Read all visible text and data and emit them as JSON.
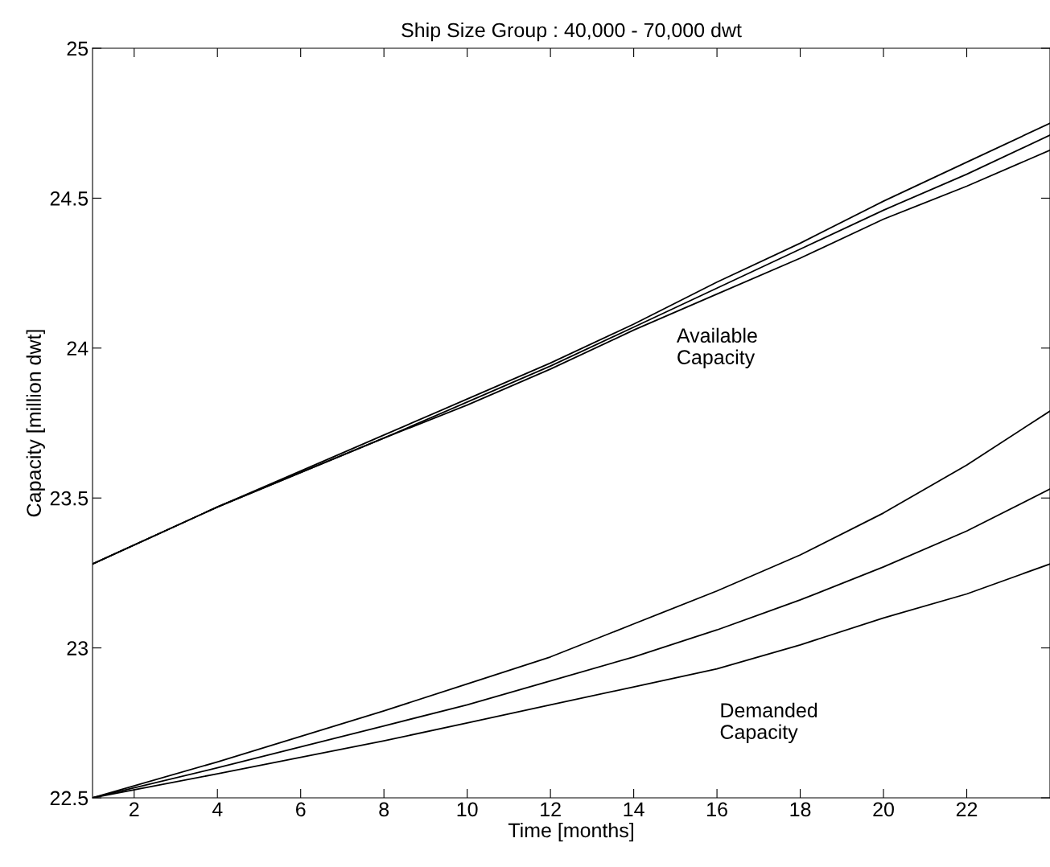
{
  "chart_data": {
    "type": "line",
    "title": "Ship Size Group : 40,000 - 70,000 dwt",
    "xlabel": "Time [months]",
    "ylabel": "Capacity [million dwt]",
    "x": [
      1,
      4,
      8,
      10,
      12,
      14,
      16,
      18,
      20,
      22,
      24
    ],
    "series": [
      {
        "color": "#000000",
        "values": [
          23.28,
          23.47,
          23.71,
          23.83,
          23.95,
          24.08,
          24.22,
          24.35,
          24.49,
          24.62,
          24.75
        ]
      },
      {
        "color": "#000000",
        "values": [
          23.28,
          23.47,
          23.7,
          23.82,
          23.94,
          24.07,
          24.2,
          24.33,
          24.46,
          24.58,
          24.71
        ]
      },
      {
        "color": "#000000",
        "values": [
          23.28,
          23.47,
          23.7,
          23.81,
          23.93,
          24.06,
          24.18,
          24.3,
          24.43,
          24.54,
          24.66
        ]
      },
      {
        "color": "#000000",
        "values": [
          22.5,
          22.62,
          22.79,
          22.88,
          22.97,
          23.08,
          23.19,
          23.31,
          23.45,
          23.61,
          23.79
        ]
      },
      {
        "color": "#000000",
        "values": [
          22.5,
          22.6,
          22.74,
          22.81,
          22.89,
          22.97,
          23.06,
          23.16,
          23.27,
          23.39,
          23.53
        ]
      },
      {
        "color": "#000000",
        "values": [
          22.5,
          22.58,
          22.69,
          22.75,
          22.81,
          22.87,
          22.93,
          23.01,
          23.1,
          23.18,
          23.28
        ]
      }
    ],
    "annotations": [
      "Available\nCapacity",
      "Demanded\nCapacity"
    ],
    "xlim": [
      1,
      24
    ],
    "ylim": [
      22.5,
      25
    ],
    "xticks": [
      2,
      4,
      6,
      8,
      10,
      12,
      14,
      16,
      18,
      20,
      22
    ],
    "yticks": [
      22.5,
      23,
      23.5,
      24,
      24.5,
      25
    ],
    "grid": false,
    "legend": false,
    "marker": "none",
    "line_style": "solid"
  }
}
